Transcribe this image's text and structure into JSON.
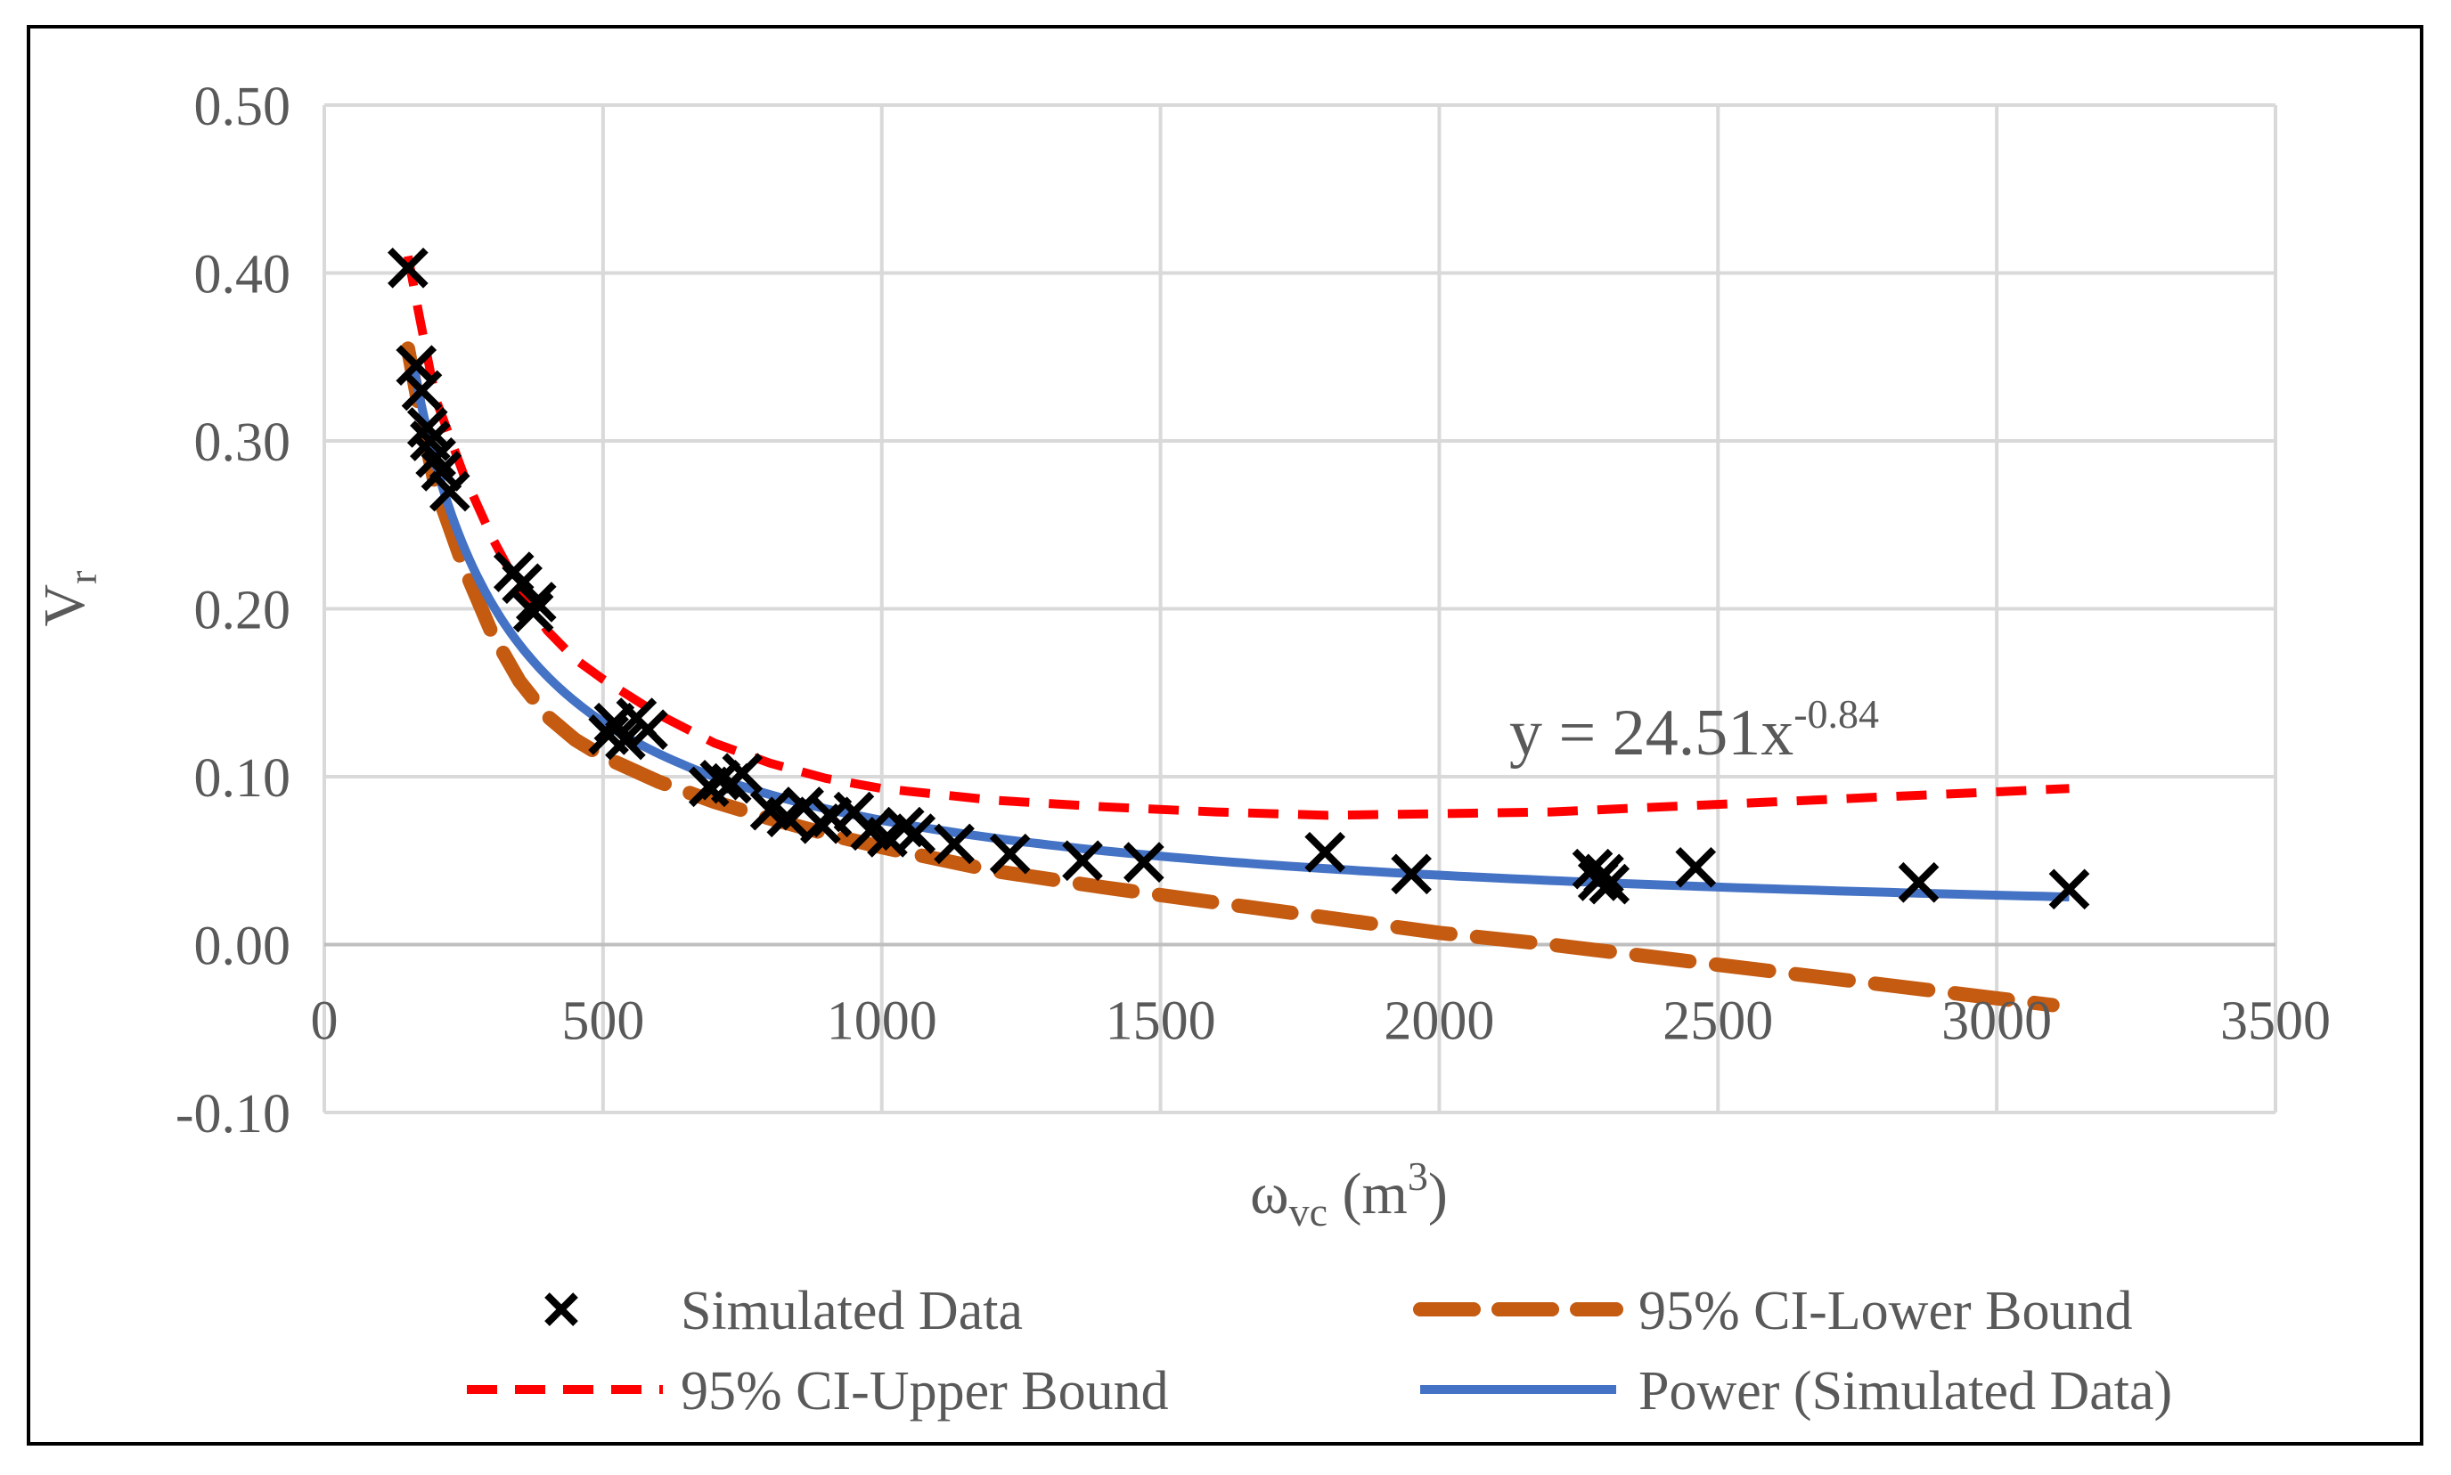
{
  "chart_data": {
    "type": "scatter",
    "xlabel": {
      "base": "ω",
      "sub": "vc",
      "unit_open": " (m",
      "sup": "3",
      "unit_close": ")"
    },
    "ylabel": {
      "base": "V",
      "sub": "r"
    },
    "xlim": [
      0,
      3500
    ],
    "ylim": [
      -0.1,
      0.5
    ],
    "x_ticks": [
      0,
      500,
      1000,
      1500,
      2000,
      2500,
      3000,
      3500
    ],
    "x_tick_labels": [
      "0",
      "500",
      "1000",
      "1500",
      "2000",
      "2500",
      "3000",
      "3500"
    ],
    "y_ticks": [
      0.5,
      0.4,
      0.3,
      0.2,
      0.1,
      0.0,
      -0.1
    ],
    "y_tick_labels": [
      "0.50",
      "0.40",
      "0.30",
      "0.20",
      "0.10",
      "0.00",
      "-0.10"
    ],
    "grid": true,
    "equation": {
      "prefix": "y = 24.51x",
      "exponent": "-0.84"
    },
    "legend": {
      "position": "bottom",
      "entries": [
        {
          "name": "Simulated Data",
          "style": "x-marker",
          "color": "#000000"
        },
        {
          "name": "95% CI-Lower Bound",
          "style": "long-dash",
          "color": "#C55A11"
        },
        {
          "name": "95% CI-Upper Bound",
          "style": "short-dash",
          "color": "#FF0000"
        },
        {
          "name": "Power (Simulated Data)",
          "style": "solid",
          "color": "#4472C4"
        }
      ]
    },
    "series": [
      {
        "name": "Simulated Data",
        "points": [
          [
            150,
            0.403
          ],
          [
            165,
            0.345
          ],
          [
            175,
            0.33
          ],
          [
            185,
            0.308
          ],
          [
            190,
            0.3
          ],
          [
            200,
            0.29
          ],
          [
            210,
            0.282
          ],
          [
            225,
            0.27
          ],
          [
            340,
            0.222
          ],
          [
            355,
            0.215
          ],
          [
            375,
            0.198
          ],
          [
            380,
            0.204
          ],
          [
            510,
            0.125
          ],
          [
            520,
            0.132
          ],
          [
            540,
            0.122
          ],
          [
            560,
            0.135
          ],
          [
            580,
            0.128
          ],
          [
            690,
            0.094
          ],
          [
            710,
            0.098
          ],
          [
            730,
            0.096
          ],
          [
            750,
            0.102
          ],
          [
            800,
            0.08
          ],
          [
            830,
            0.076
          ],
          [
            860,
            0.082
          ],
          [
            890,
            0.072
          ],
          [
            910,
            0.076
          ],
          [
            950,
            0.079
          ],
          [
            980,
            0.068
          ],
          [
            1010,
            0.064
          ],
          [
            1040,
            0.07
          ],
          [
            1060,
            0.066
          ],
          [
            1130,
            0.06
          ],
          [
            1230,
            0.054
          ],
          [
            1360,
            0.05
          ],
          [
            1470,
            0.049
          ],
          [
            1795,
            0.055
          ],
          [
            1950,
            0.042
          ],
          [
            2275,
            0.045
          ],
          [
            2285,
            0.038
          ],
          [
            2295,
            0.042
          ],
          [
            2305,
            0.036
          ],
          [
            2460,
            0.046
          ],
          [
            2860,
            0.037
          ],
          [
            3130,
            0.033
          ]
        ]
      },
      {
        "name": "95% CI-Lower Bound",
        "points": [
          [
            150,
            0.355
          ],
          [
            170,
            0.32
          ],
          [
            200,
            0.272
          ],
          [
            250,
            0.225
          ],
          [
            300,
            0.186
          ],
          [
            350,
            0.157
          ],
          [
            400,
            0.136
          ],
          [
            450,
            0.122
          ],
          [
            500,
            0.112
          ],
          [
            600,
            0.097
          ],
          [
            700,
            0.085
          ],
          [
            800,
            0.075
          ],
          [
            900,
            0.066
          ],
          [
            1000,
            0.058
          ],
          [
            1200,
            0.044
          ],
          [
            1400,
            0.034
          ],
          [
            1600,
            0.025
          ],
          [
            1800,
            0.016
          ],
          [
            2000,
            0.007
          ],
          [
            2200,
            0.0
          ],
          [
            2400,
            -0.008
          ],
          [
            2600,
            -0.016
          ],
          [
            2800,
            -0.024
          ],
          [
            3000,
            -0.032
          ],
          [
            3100,
            -0.036
          ]
        ]
      },
      {
        "name": "95% CI-Upper Bound",
        "points": [
          [
            150,
            0.41
          ],
          [
            170,
            0.375
          ],
          [
            200,
            0.325
          ],
          [
            250,
            0.28
          ],
          [
            300,
            0.243
          ],
          [
            350,
            0.212
          ],
          [
            400,
            0.187
          ],
          [
            450,
            0.17
          ],
          [
            500,
            0.158
          ],
          [
            600,
            0.137
          ],
          [
            700,
            0.12
          ],
          [
            800,
            0.108
          ],
          [
            900,
            0.099
          ],
          [
            1000,
            0.093
          ],
          [
            1200,
            0.086
          ],
          [
            1400,
            0.082
          ],
          [
            1600,
            0.079
          ],
          [
            1800,
            0.077
          ],
          [
            2000,
            0.078
          ],
          [
            2200,
            0.079
          ],
          [
            2400,
            0.082
          ],
          [
            2600,
            0.085
          ],
          [
            2800,
            0.088
          ],
          [
            3000,
            0.091
          ],
          [
            3130,
            0.093
          ]
        ]
      },
      {
        "name": "Power (Simulated Data)",
        "function": "24.51 * x^-0.84",
        "domain": [
          160,
          3130
        ]
      }
    ]
  }
}
